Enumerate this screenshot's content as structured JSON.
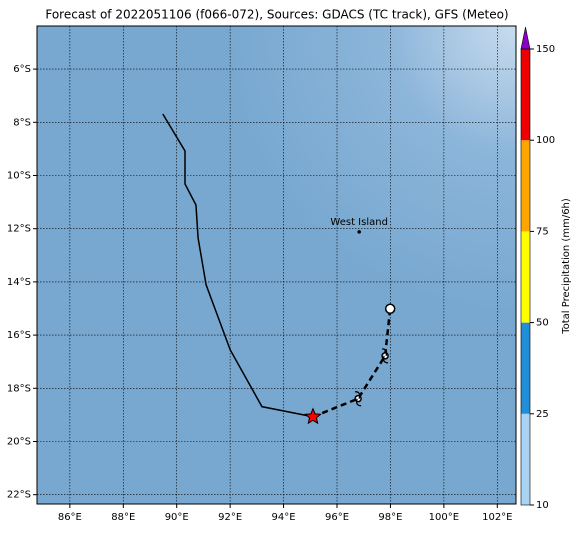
{
  "chart_data": {
    "type": "map",
    "title": "Forecast of 2022051106 (f066-072), Sources: GDACS (TC track), GFS (Meteo)",
    "xlim": [
      84.77,
      102.7
    ],
    "ylim": [
      -22.35,
      -4.38
    ],
    "xticks": [
      {
        "value": 86,
        "label": "86°E"
      },
      {
        "value": 88,
        "label": "88°E"
      },
      {
        "value": 90,
        "label": "90°E"
      },
      {
        "value": 92,
        "label": "92°E"
      },
      {
        "value": 94,
        "label": "94°E"
      },
      {
        "value": 96,
        "label": "96°E"
      },
      {
        "value": 98,
        "label": "98°E"
      },
      {
        "value": 100,
        "label": "100°E"
      },
      {
        "value": 102,
        "label": "102°E"
      }
    ],
    "yticks": [
      {
        "value": -6,
        "label": "6°S"
      },
      {
        "value": -8,
        "label": "8°S"
      },
      {
        "value": -10,
        "label": "10°S"
      },
      {
        "value": -12,
        "label": "12°S"
      },
      {
        "value": -14,
        "label": "14°S"
      },
      {
        "value": -16,
        "label": "16°S"
      },
      {
        "value": -18,
        "label": "18°S"
      },
      {
        "value": -20,
        "label": "20°S"
      },
      {
        "value": -22,
        "label": "22°S"
      }
    ],
    "grid": true,
    "track": {
      "color": "#000000",
      "lon": [
        89.48,
        90.31,
        90.31,
        90.72,
        90.8,
        91.1,
        92.0,
        93.19,
        95.1
      ],
      "lat": [
        -7.69,
        -9.08,
        -10.32,
        -11.11,
        -12.35,
        -14.11,
        -16.55,
        -18.69,
        -19.07
      ]
    },
    "forecast": {
      "color": "#000000",
      "lon": [
        95.1,
        96.79,
        97.8,
        97.99
      ],
      "lat": [
        -19.07,
        -18.39,
        -16.78,
        -15.01
      ]
    },
    "current": {
      "lon": 95.1,
      "lat": -19.07,
      "color": "#ff0000"
    },
    "places": [
      {
        "name": "West Island",
        "lon": 96.83,
        "lat": -12.12
      }
    ],
    "colorbar": {
      "label": "Total Precipitation (mm/6h)",
      "ticks": [
        10,
        25,
        50,
        75,
        100,
        150
      ],
      "colors": [
        "#a9d3f2",
        "#1e8fd8",
        "#ffff00",
        "#ffa500",
        "#ee0000"
      ],
      "over_color": "#8a00c8"
    }
  }
}
